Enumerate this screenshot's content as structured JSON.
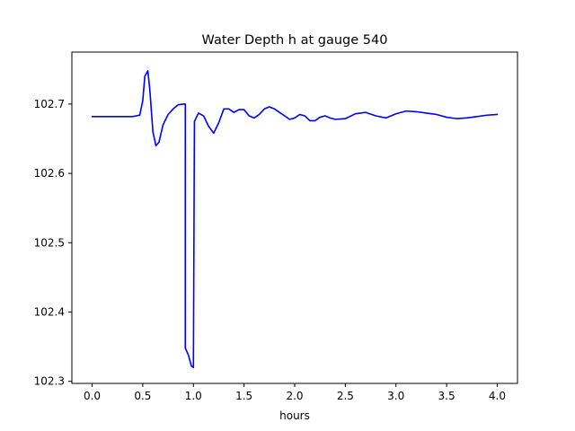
{
  "chart_data": {
    "type": "line",
    "title": "Water Depth h at gauge 540",
    "xlabel": "hours",
    "ylabel": "",
    "xlim": [
      -0.2,
      4.2
    ],
    "ylim": [
      102.297,
      102.775
    ],
    "xticks": [
      0.0,
      0.5,
      1.0,
      1.5,
      2.0,
      2.5,
      3.0,
      3.5,
      4.0
    ],
    "xtick_labels": [
      "0.0",
      "0.5",
      "1.0",
      "1.5",
      "2.0",
      "2.5",
      "3.0",
      "3.5",
      "4.0"
    ],
    "yticks": [
      102.3,
      102.4,
      102.5,
      102.6,
      102.7
    ],
    "ytick_labels": [
      "102.3",
      "102.4",
      "102.5",
      "102.6",
      "102.7"
    ],
    "grid": false,
    "series": [
      {
        "color": "#0000ff",
        "x": [
          0.0,
          0.2,
          0.4,
          0.47,
          0.5,
          0.52,
          0.55,
          0.57,
          0.6,
          0.63,
          0.66,
          0.7,
          0.75,
          0.8,
          0.85,
          0.9,
          0.92,
          0.92,
          0.95,
          0.98,
          1.0,
          1.01,
          1.05,
          1.1,
          1.15,
          1.2,
          1.25,
          1.3,
          1.35,
          1.4,
          1.45,
          1.5,
          1.55,
          1.6,
          1.65,
          1.7,
          1.75,
          1.8,
          1.85,
          1.9,
          1.95,
          2.0,
          2.05,
          2.1,
          2.15,
          2.2,
          2.25,
          2.3,
          2.35,
          2.4,
          2.5,
          2.6,
          2.7,
          2.8,
          2.9,
          3.0,
          3.1,
          3.2,
          3.3,
          3.4,
          3.5,
          3.6,
          3.7,
          3.8,
          3.9,
          4.0
        ],
        "y": [
          102.682,
          102.682,
          102.682,
          102.684,
          102.705,
          102.74,
          102.748,
          102.72,
          102.66,
          102.64,
          102.645,
          102.67,
          102.685,
          102.693,
          102.699,
          102.7,
          102.7,
          102.348,
          102.338,
          102.322,
          102.32,
          102.675,
          102.687,
          102.683,
          102.668,
          102.658,
          102.673,
          102.693,
          102.693,
          102.688,
          102.692,
          102.692,
          102.683,
          102.68,
          102.685,
          102.693,
          102.696,
          102.693,
          102.688,
          102.683,
          102.678,
          102.68,
          102.685,
          102.683,
          102.676,
          102.676,
          102.681,
          102.683,
          102.68,
          102.678,
          102.679,
          102.686,
          102.688,
          102.683,
          102.68,
          102.686,
          102.69,
          102.689,
          102.687,
          102.685,
          102.681,
          102.679,
          102.68,
          102.682,
          102.684,
          102.685
        ]
      }
    ]
  }
}
